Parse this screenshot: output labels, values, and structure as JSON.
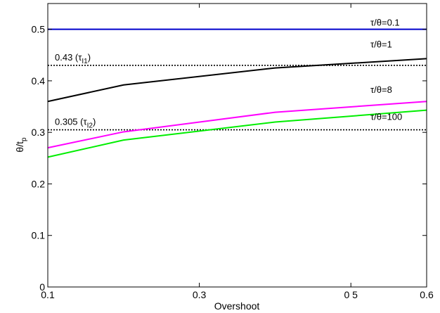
{
  "chart_data": {
    "type": "line",
    "xlabel": "Overshoot",
    "ylabel": "θ/t",
    "ylabel_sub": "p",
    "xlim": [
      0.1,
      0.6
    ],
    "ylim": [
      0,
      0.55
    ],
    "xticks": [
      0.1,
      0.3,
      0.5,
      0.6
    ],
    "xtick_labels": [
      "0.1",
      "0.3",
      "0 5",
      "0.6"
    ],
    "yticks": [
      0,
      0.1,
      0.2,
      0.3,
      0.4,
      0.5
    ],
    "ytick_labels": [
      "0",
      "0.1",
      "0.2",
      "0.3",
      "0.4",
      "0.5"
    ],
    "grid": false,
    "series": [
      {
        "name": "τ/θ=0.1",
        "color": "#0000cc",
        "x": [
          0.1,
          0.6
        ],
        "y": [
          0.5,
          0.5
        ]
      },
      {
        "name": "τ/θ=1",
        "color": "#000000",
        "x": [
          0.1,
          0.2,
          0.4,
          0.6
        ],
        "y": [
          0.36,
          0.392,
          0.425,
          0.443
        ]
      },
      {
        "name": "τ/θ=8",
        "color": "#ff00ff",
        "x": [
          0.1,
          0.2,
          0.4,
          0.6
        ],
        "y": [
          0.27,
          0.301,
          0.339,
          0.36
        ]
      },
      {
        "name": "τ/θ=100",
        "color": "#00ee00",
        "x": [
          0.1,
          0.2,
          0.4,
          0.6
        ],
        "y": [
          0.252,
          0.285,
          0.32,
          0.343
        ]
      }
    ],
    "reference_lines": [
      {
        "y": 0.43,
        "style": "dotted",
        "label_value": "0.43",
        "label_tau": "τ",
        "label_sub": "I1"
      },
      {
        "y": 0.305,
        "style": "dotted",
        "label_value": "0.305",
        "label_tau": "τ",
        "label_sub": "I2"
      }
    ]
  }
}
